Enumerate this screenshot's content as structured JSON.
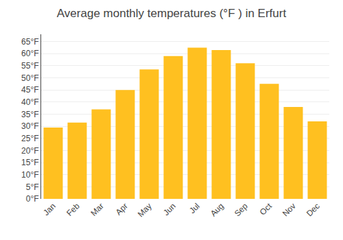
{
  "chart_data": {
    "type": "bar",
    "title": "Average monthly temperatures (°F ) in Erfurt",
    "categories": [
      "Jan",
      "Feb",
      "Mar",
      "Apr",
      "May",
      "Jun",
      "Jul",
      "Aug",
      "Sep",
      "Oct",
      "Nov",
      "Dec"
    ],
    "values": [
      29.5,
      31.5,
      37.0,
      45.0,
      53.5,
      59.0,
      62.5,
      61.5,
      56.0,
      47.5,
      38.0,
      32.0
    ],
    "color": "#FFC020",
    "ylim": [
      0,
      68
    ],
    "yticks": [
      {
        "value": 0,
        "label": "0°F"
      },
      {
        "value": 5,
        "label": "5°F"
      },
      {
        "value": 10,
        "label": "10°F"
      },
      {
        "value": 15,
        "label": "15°F"
      },
      {
        "value": 20,
        "label": "20°F"
      },
      {
        "value": 25,
        "label": "25°F"
      },
      {
        "value": 30,
        "label": "30°F"
      },
      {
        "value": 35,
        "label": "35°F"
      },
      {
        "value": 40,
        "label": "40°F"
      },
      {
        "value": 45,
        "label": "45°F"
      },
      {
        "value": 50,
        "label": "50°F"
      },
      {
        "value": 55,
        "label": "55°F"
      },
      {
        "value": 60,
        "label": "60°F"
      },
      {
        "value": 65,
        "label": "65°F"
      }
    ],
    "grid": true
  }
}
